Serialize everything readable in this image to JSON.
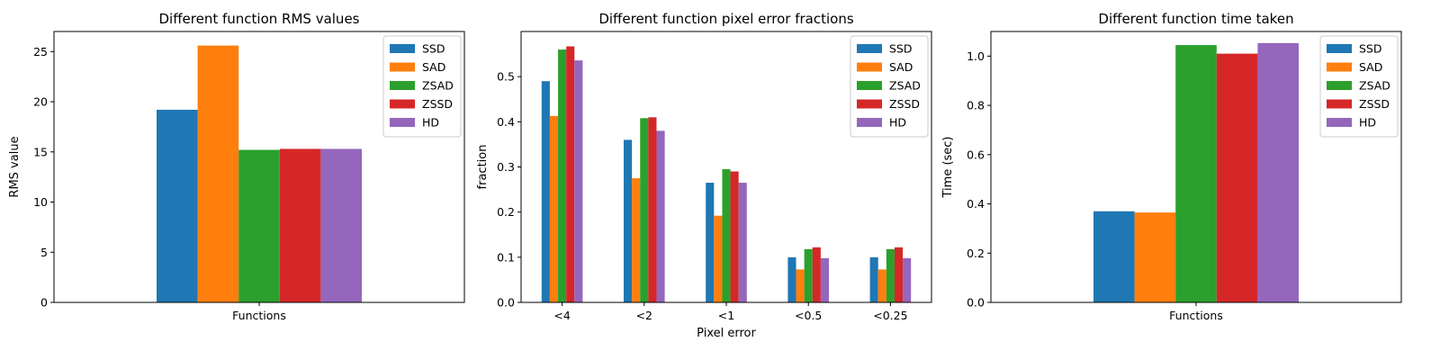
{
  "chart_data": [
    {
      "type": "bar",
      "title": "Different function RMS values",
      "xlabel": "",
      "ylabel": "RMS value",
      "categories": [
        "Functions"
      ],
      "ylim": [
        0,
        27
      ],
      "yticks": [
        0,
        5,
        10,
        15,
        20,
        25
      ],
      "legend_loc": "top-right",
      "series": [
        {
          "name": "SSD",
          "values": [
            19.2
          ]
        },
        {
          "name": "SAD",
          "values": [
            25.6
          ]
        },
        {
          "name": "ZSAD",
          "values": [
            15.2
          ]
        },
        {
          "name": "ZSSD",
          "values": [
            15.3
          ]
        },
        {
          "name": "HD",
          "values": [
            15.3
          ]
        }
      ]
    },
    {
      "type": "bar",
      "title": "Different function pixel error fractions",
      "xlabel": "Pixel error",
      "ylabel": "fraction",
      "categories": [
        "<4",
        "<2",
        "<1",
        "<0.5",
        "<0.25"
      ],
      "ylim": [
        0,
        0.6
      ],
      "yticks": [
        0.0,
        0.1,
        0.2,
        0.3,
        0.4,
        0.5
      ],
      "legend_loc": "top-right",
      "series": [
        {
          "name": "SSD",
          "values": [
            0.49,
            0.36,
            0.265,
            0.1,
            0.1
          ]
        },
        {
          "name": "SAD",
          "values": [
            0.413,
            0.275,
            0.192,
            0.073,
            0.073
          ]
        },
        {
          "name": "ZSAD",
          "values": [
            0.56,
            0.408,
            0.295,
            0.118,
            0.118
          ]
        },
        {
          "name": "ZSSD",
          "values": [
            0.567,
            0.41,
            0.29,
            0.122,
            0.122
          ]
        },
        {
          "name": "HD",
          "values": [
            0.536,
            0.38,
            0.265,
            0.098,
            0.098
          ]
        }
      ]
    },
    {
      "type": "bar",
      "title": "Different function time taken",
      "xlabel": "",
      "ylabel": "Time (sec)",
      "categories": [
        "Functions"
      ],
      "ylim": [
        0,
        1.1
      ],
      "yticks": [
        0.0,
        0.2,
        0.4,
        0.6,
        0.8,
        1.0
      ],
      "legend_loc": "top-right",
      "series": [
        {
          "name": "SSD",
          "values": [
            0.37
          ]
        },
        {
          "name": "SAD",
          "values": [
            0.365
          ]
        },
        {
          "name": "ZSAD",
          "values": [
            1.045
          ]
        },
        {
          "name": "ZSSD",
          "values": [
            1.01
          ]
        },
        {
          "name": "HD",
          "values": [
            1.053
          ]
        }
      ]
    }
  ],
  "colors": {
    "SSD": "#1f77b4",
    "SAD": "#ff7f0e",
    "ZSAD": "#2ca02c",
    "ZSSD": "#d62728",
    "HD": "#9467bd"
  },
  "category_group_label": "Functions"
}
